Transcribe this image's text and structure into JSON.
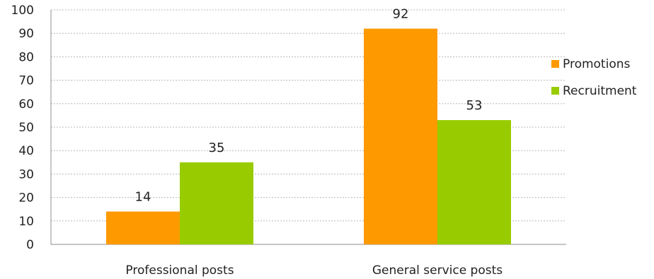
{
  "chart_data": {
    "type": "bar",
    "categories": [
      "Professional posts",
      "General service posts"
    ],
    "series": [
      {
        "name": "Promotions",
        "values": [
          14,
          92
        ],
        "color": "#ff9900"
      },
      {
        "name": "Recruitment",
        "values": [
          35,
          53
        ],
        "color": "#99cc00"
      }
    ],
    "ylim": [
      0,
      100
    ],
    "yticks": [
      0,
      10,
      20,
      30,
      40,
      50,
      60,
      70,
      80,
      90,
      100
    ],
    "grid": true,
    "legend_position": "right",
    "data_labels": true
  }
}
